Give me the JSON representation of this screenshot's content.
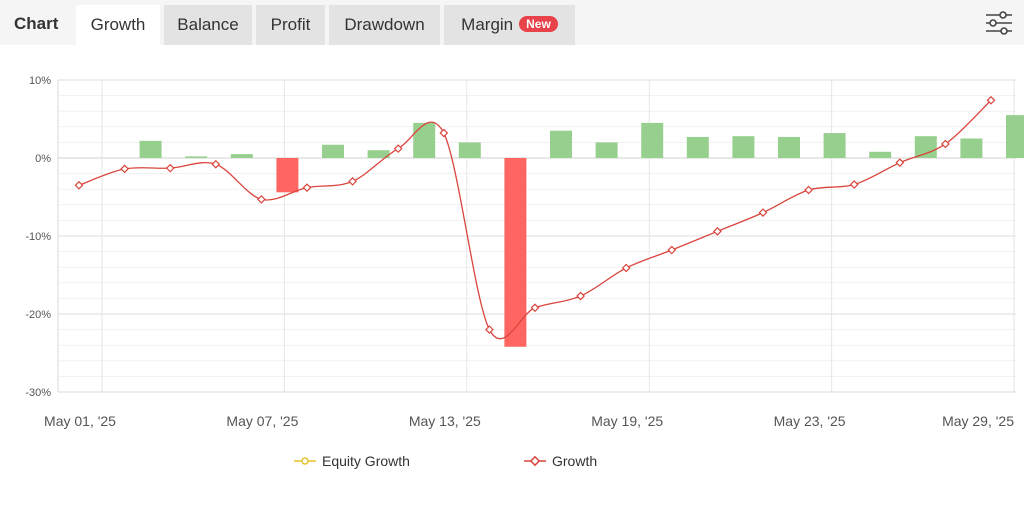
{
  "tabs": {
    "title": "Chart",
    "items": [
      {
        "label": "Growth",
        "active": true
      },
      {
        "label": "Balance",
        "active": false
      },
      {
        "label": "Profit",
        "active": false
      },
      {
        "label": "Drawdown",
        "active": false
      },
      {
        "label": "Margin",
        "active": false,
        "badge": "New"
      }
    ],
    "settings_icon": "sliders-icon"
  },
  "colors": {
    "growth_line": "#d9453d",
    "equity_line": "#e6c229",
    "bar_positive": "#97d08e",
    "bar_negative": "#ff6661",
    "badge": "#e8424a"
  },
  "chart_data": {
    "type": "bar",
    "ylim": [
      -30,
      10
    ],
    "ytick_labels": [
      "10%",
      "0%",
      "-10%",
      "-20%",
      "-30%"
    ],
    "yticks": [
      10,
      0,
      -10,
      -20,
      -30
    ],
    "xtick_labels": [
      "May 01, '25",
      "May 07, '25",
      "May 13, '25",
      "May 19, '25",
      "May 23, '25",
      "May 29, '25"
    ],
    "xtick_indices": [
      0,
      4,
      8,
      12,
      16,
      20
    ],
    "grid": true,
    "legend_position": "bottom",
    "legend": [
      "Equity Growth",
      "Growth"
    ],
    "series": [
      {
        "name": "Growth",
        "type": "line",
        "values": [
          -3.5,
          -1.4,
          -1.3,
          -0.8,
          -5.3,
          -3.8,
          -3.0,
          1.2,
          3.2,
          -22.0,
          -19.2,
          -17.7,
          -14.1,
          -11.8,
          -9.4,
          -7.0,
          -4.1,
          -3.4,
          -0.6,
          1.8,
          7.4
        ]
      },
      {
        "name": "Equity Growth",
        "type": "line",
        "values": []
      },
      {
        "name": "",
        "type": "bar",
        "values": [
          null,
          2.2,
          0.2,
          0.5,
          -4.4,
          1.7,
          1.0,
          4.5,
          2.0,
          -24.2,
          3.5,
          2.0,
          4.5,
          2.7,
          2.8,
          2.7,
          3.2,
          0.8,
          2.8,
          2.5,
          5.5
        ]
      }
    ]
  }
}
